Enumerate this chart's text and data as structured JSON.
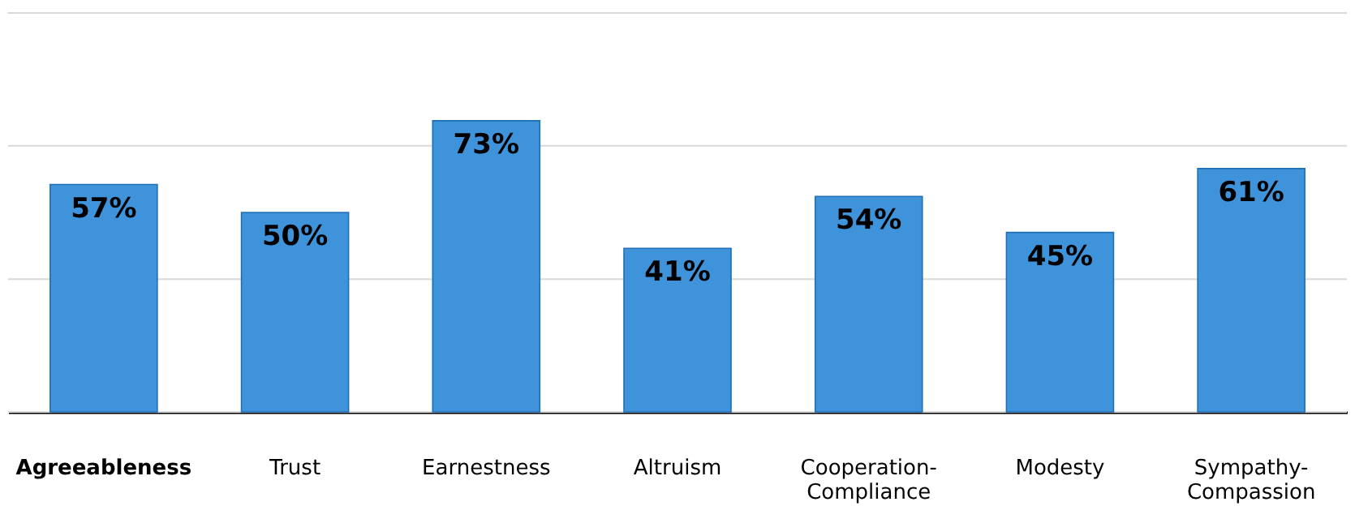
{
  "chart_data": {
    "type": "bar",
    "categories": [
      "Agreeableness",
      "Trust",
      "Earnestness",
      "Altruism",
      "Cooperation-Compliance",
      "Modesty",
      "Sympathy-Compassion"
    ],
    "values": [
      57,
      50,
      73,
      41,
      54,
      45,
      61
    ],
    "value_labels": [
      "57%",
      "50%",
      "73%",
      "41%",
      "54%",
      "45%",
      "61%"
    ],
    "color": "#3f93da",
    "ylim": [
      0,
      100
    ],
    "yticks": [
      {
        "value": 0,
        "label": null
      },
      {
        "value": 33.3,
        "label": null
      },
      {
        "value": 66.7,
        "label": null
      },
      {
        "value": 100,
        "label": null
      }
    ],
    "grid": "y",
    "tick_labels": "x"
  }
}
